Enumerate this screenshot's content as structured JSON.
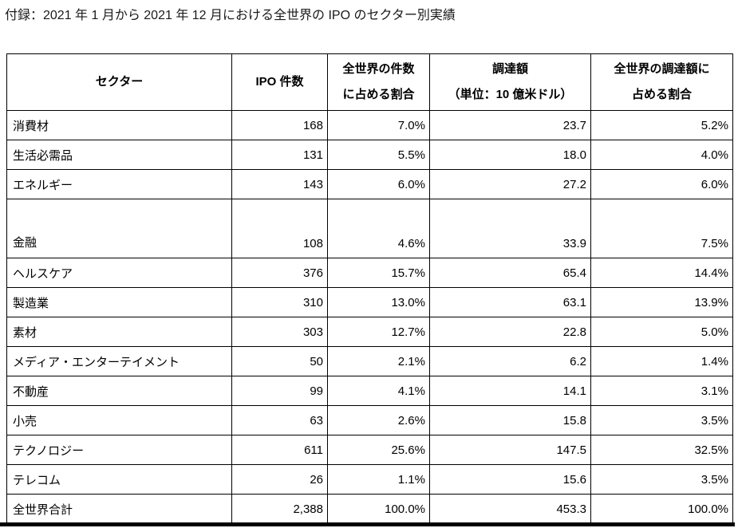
{
  "title": "付録：2021 年 1 月から 2021 年 12 月における全世界の IPO のセクター別実績",
  "table": {
    "columns": [
      {
        "id": "sector",
        "lines": [
          "セクター"
        ]
      },
      {
        "id": "ipo_count",
        "lines": [
          "IPO 件数"
        ]
      },
      {
        "id": "count_share",
        "lines": [
          "全世界の件数",
          "に占める割合"
        ]
      },
      {
        "id": "proceeds",
        "lines": [
          "調達額",
          "（単位：10 億米ドル）"
        ]
      },
      {
        "id": "proceeds_share",
        "lines": [
          "全世界の調達額に",
          "占める割合"
        ]
      }
    ],
    "rows": [
      {
        "sector": "消費材",
        "ipo_count": "168",
        "count_share": "7.0%",
        "proceeds": "23.7",
        "proceeds_share": "5.2%",
        "tall": false
      },
      {
        "sector": "生活必需品",
        "ipo_count": "131",
        "count_share": "5.5%",
        "proceeds": "18.0",
        "proceeds_share": "4.0%",
        "tall": false
      },
      {
        "sector": "エネルギー",
        "ipo_count": "143",
        "count_share": "6.0%",
        "proceeds": "27.2",
        "proceeds_share": "6.0%",
        "tall": false
      },
      {
        "sector": "金融",
        "ipo_count": "108",
        "count_share": "4.6%",
        "proceeds": "33.9",
        "proceeds_share": "7.5%",
        "tall": true
      },
      {
        "sector": "ヘルスケア",
        "ipo_count": "376",
        "count_share": "15.7%",
        "proceeds": "65.4",
        "proceeds_share": "14.4%",
        "tall": false
      },
      {
        "sector": "製造業",
        "ipo_count": "310",
        "count_share": "13.0%",
        "proceeds": "63.1",
        "proceeds_share": "13.9%",
        "tall": false
      },
      {
        "sector": "素材",
        "ipo_count": "303",
        "count_share": "12.7%",
        "proceeds": "22.8",
        "proceeds_share": "5.0%",
        "tall": false
      },
      {
        "sector": "メディア・エンターテイメント",
        "ipo_count": "50",
        "count_share": "2.1%",
        "proceeds": "6.2",
        "proceeds_share": "1.4%",
        "tall": false
      },
      {
        "sector": "不動産",
        "ipo_count": "99",
        "count_share": "4.1%",
        "proceeds": "14.1",
        "proceeds_share": "3.1%",
        "tall": false
      },
      {
        "sector": "小売",
        "ipo_count": "63",
        "count_share": "2.6%",
        "proceeds": "15.8",
        "proceeds_share": "3.5%",
        "tall": false
      },
      {
        "sector": "テクノロジー",
        "ipo_count": "611",
        "count_share": "25.6%",
        "proceeds": "147.5",
        "proceeds_share": "32.5%",
        "tall": false
      },
      {
        "sector": "テレコム",
        "ipo_count": "26",
        "count_share": "1.1%",
        "proceeds": "15.6",
        "proceeds_share": "3.5%",
        "tall": false
      },
      {
        "sector": "全世界合計",
        "ipo_count": "2,388",
        "count_share": "100.0%",
        "proceeds": "453.3",
        "proceeds_share": "100.0%",
        "tall": false
      }
    ]
  }
}
